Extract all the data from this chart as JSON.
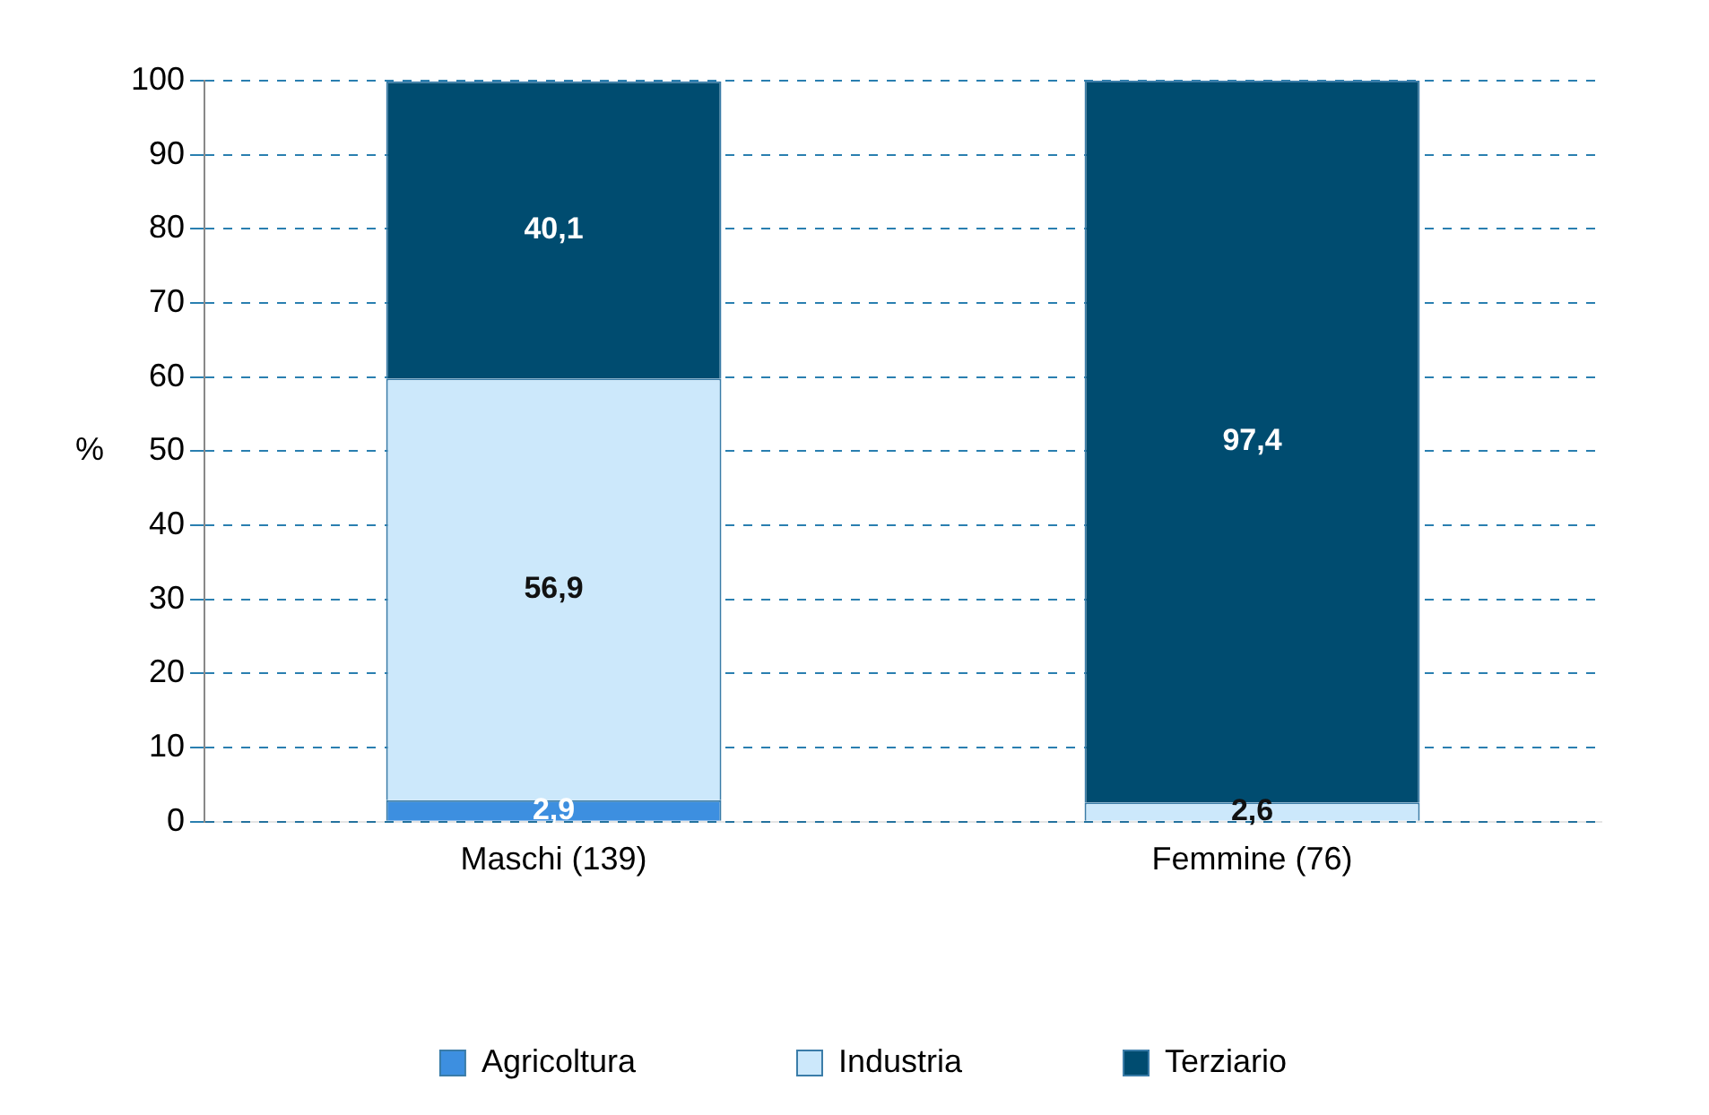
{
  "chart_data": {
    "type": "bar",
    "stacked": true,
    "ylabel": "%",
    "categories": [
      "Maschi (139)",
      "Femmine (76)"
    ],
    "series": [
      {
        "name": "Agricoltura",
        "color": "#3d8fe0",
        "values": [
          2.9,
          null
        ],
        "value_labels": [
          "2,9",
          null
        ]
      },
      {
        "name": "Industria",
        "color": "#cce8fb",
        "values": [
          56.9,
          2.6
        ],
        "value_labels": [
          "56,9",
          "2,6"
        ]
      },
      {
        "name": "Terziario",
        "color": "#004c70",
        "values": [
          40.1,
          97.4
        ],
        "value_labels": [
          "40,1",
          "97,4"
        ]
      }
    ],
    "ylim": [
      0,
      100
    ],
    "yticks": [
      0,
      10,
      20,
      30,
      40,
      50,
      60,
      70,
      80,
      90,
      100
    ],
    "grid": "y",
    "legend": "bottom"
  }
}
